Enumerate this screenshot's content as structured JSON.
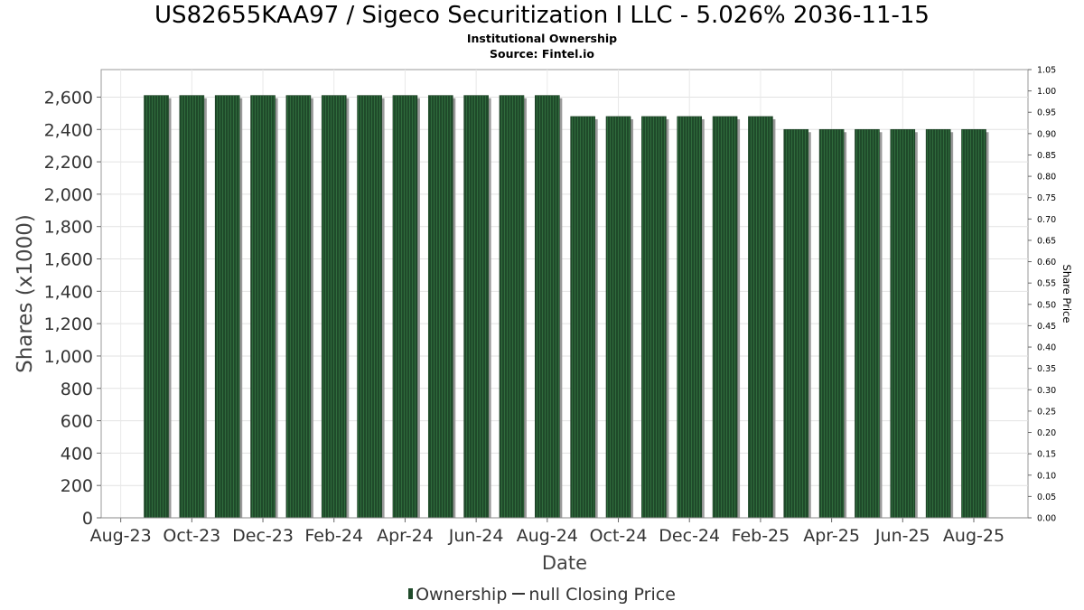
{
  "chart_data": {
    "type": "bar",
    "title": "US82655KAA97 / Sigeco Securitization I LLC - 5.026% 2036-11-15",
    "subtitle": "Institutional Ownership",
    "source": "Source: Fintel.io",
    "xlabel": "Date",
    "ylabel": "Shares (x1000)",
    "y2label": "Share Price",
    "x_tick_labels": [
      "Aug-23",
      "Oct-23",
      "Dec-23",
      "Feb-24",
      "Apr-24",
      "Jun-24",
      "Aug-24",
      "Oct-24",
      "Dec-24",
      "Feb-25",
      "Apr-25",
      "Jun-25",
      "Aug-25"
    ],
    "y_tick_labels": [
      "0",
      "200",
      "400",
      "600",
      "800",
      "1,000",
      "1,200",
      "1,400",
      "1,600",
      "1,800",
      "2,000",
      "2,200",
      "2,400",
      "2,600"
    ],
    "y2_tick_labels": [
      "0.00",
      "0.05",
      "0.10",
      "0.15",
      "0.20",
      "0.25",
      "0.30",
      "0.35",
      "0.40",
      "0.45",
      "0.50",
      "0.55",
      "0.60",
      "0.65",
      "0.70",
      "0.75",
      "0.80",
      "0.85",
      "0.90",
      "0.95",
      "1.00",
      "1.05"
    ],
    "ylim": [
      0,
      2770
    ],
    "y2lim": [
      0,
      1.05
    ],
    "grid": true,
    "legend_position": "bottom",
    "series": [
      {
        "name": "Ownership",
        "color": "#1f4a2a",
        "values": [
          2610,
          2610,
          2610,
          2610,
          2610,
          2610,
          2610,
          2610,
          2610,
          2610,
          2610,
          2610,
          2480,
          2480,
          2480,
          2480,
          2480,
          2480,
          2400,
          2400,
          2400,
          2400,
          2400,
          2400
        ]
      }
    ],
    "legend": {
      "ownership": "Ownership",
      "closing": "null Closing Price"
    }
  }
}
